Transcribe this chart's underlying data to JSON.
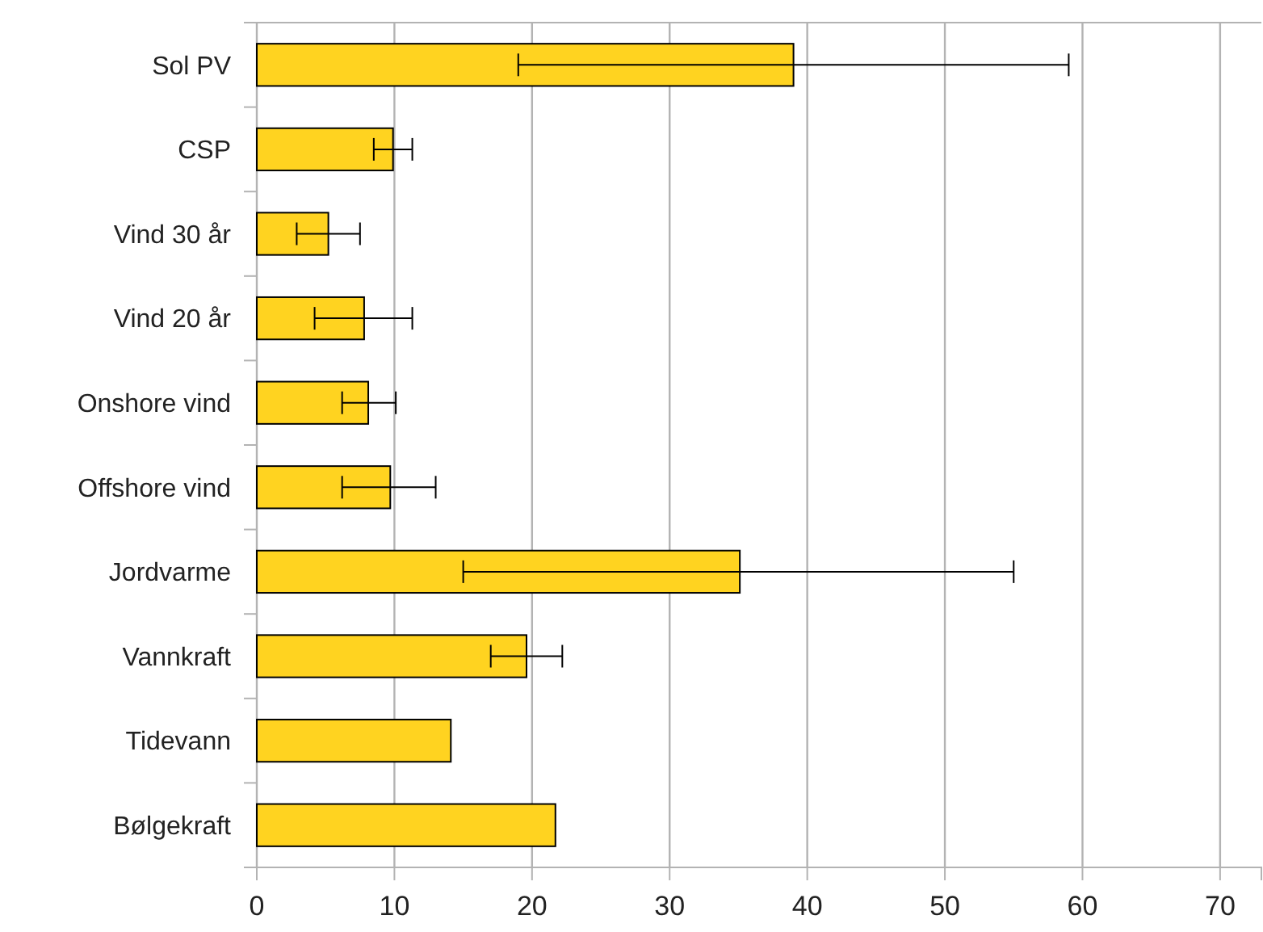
{
  "chart_data": {
    "type": "bar",
    "orientation": "horizontal",
    "categories": [
      "Sol PV",
      "CSP",
      "Vind 30 år",
      "Vind 20 år",
      "Onshore vind",
      "Offshore vind",
      "Jordvarme",
      "Vannkraft",
      "Tidevann",
      "Bølgekraft"
    ],
    "values": [
      39,
      9.9,
      5.2,
      7.8,
      8.1,
      9.7,
      35.1,
      19.6,
      14.1,
      21.7
    ],
    "errors": [
      [
        19,
        59
      ],
      [
        8.5,
        11.3
      ],
      [
        2.9,
        7.5
      ],
      [
        4.2,
        11.3
      ],
      [
        6.2,
        10.1
      ],
      [
        6.2,
        13
      ],
      [
        15,
        55
      ],
      [
        17,
        22.2
      ],
      null,
      null
    ],
    "color": "#ffd320",
    "xlim": [
      0,
      73
    ],
    "xticks": [
      0,
      10,
      20,
      30,
      40,
      50,
      60,
      70
    ],
    "grid": "x"
  }
}
